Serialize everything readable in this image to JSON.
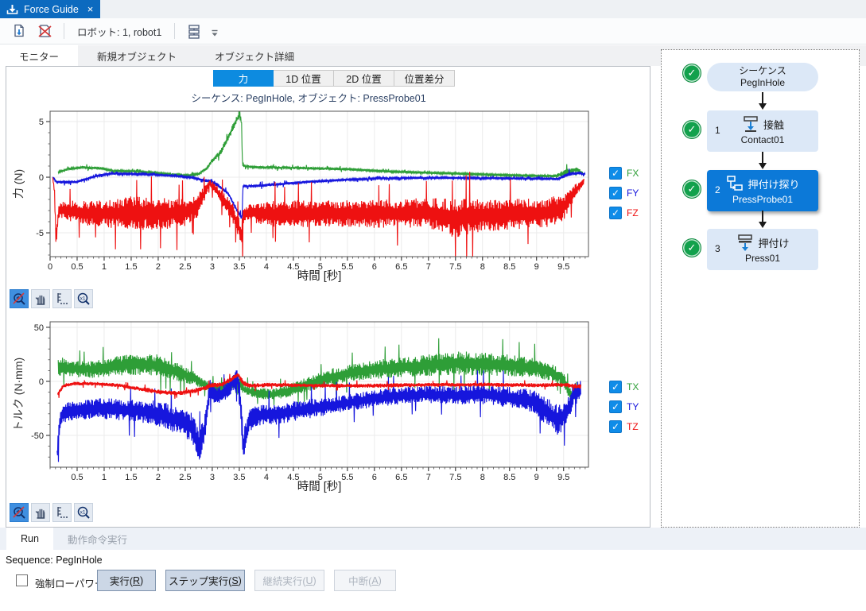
{
  "window": {
    "tab_title": "Force Guide",
    "close_glyph": "×"
  },
  "glyphs": {
    "check": "✓"
  },
  "colors": {
    "accent_blue": "#0d8be0",
    "title_tab_blue": "#0c6abf",
    "selected_node_blue": "#0c79d8",
    "node_bg": "#dce8f7",
    "success_green": "#12a14c",
    "fx": "#2e9e37",
    "fy": "#1616dd",
    "fz": "#ee1111"
  },
  "toolbar": {
    "robot_label": "ロボット: 1, robot1"
  },
  "main_tabs": {
    "items": [
      "モニター",
      "新規オブジェクト",
      "オブジェクト詳細"
    ]
  },
  "chart_tabs": {
    "items": [
      "力",
      "1D 位置",
      "2D 位置",
      "位置差分"
    ]
  },
  "subtitle": "シーケンス: PegInHole, オブジェクト: PressProbe01",
  "chart_data": [
    {
      "type": "line",
      "title": "シーケンス: PegInHole, オブジェクト: PressProbe01",
      "xlabel": "時間 [秒]",
      "ylabel": "力 (N)",
      "xlim": [
        0,
        9.96
      ],
      "ylim": [
        -7.14,
        5.93
      ],
      "xticks": [
        0,
        0.5,
        1,
        1.5,
        2,
        2.5,
        3,
        3.5,
        4,
        4.5,
        5,
        5.5,
        6,
        6.5,
        7,
        7.5,
        8,
        8.5,
        9,
        9.5
      ],
      "yticks": [
        5,
        0,
        -5
      ],
      "x_minor_step": 0.1,
      "y_minor_step": 1,
      "grid": true,
      "legend_position": "right",
      "series": [
        {
          "name": "FX",
          "color": "#2e9e37",
          "checked": true,
          "keyframes": [
            [
              0.15,
              0.45,
              0.1
            ],
            [
              0.35,
              0.75,
              0.12
            ],
            [
              0.6,
              0.88,
              0.13
            ],
            [
              0.95,
              0.8,
              0.12
            ],
            [
              1.15,
              0.58,
              0.1
            ],
            [
              1.6,
              0.52,
              0.1
            ],
            [
              2.1,
              0.32,
              0.1
            ],
            [
              2.55,
              0.15,
              0.1
            ],
            [
              2.75,
              0.3,
              0.12
            ],
            [
              2.9,
              0.8,
              0.15
            ],
            [
              3.0,
              1.5,
              0.2
            ],
            [
              3.15,
              2.2,
              0.25
            ],
            [
              3.3,
              3.6,
              0.3
            ],
            [
              3.42,
              4.9,
              0.35
            ],
            [
              3.5,
              5.55,
              0.25
            ],
            [
              3.54,
              5.1,
              0.3
            ],
            [
              3.56,
              1.05,
              0.12
            ],
            [
              3.75,
              0.9,
              0.12
            ],
            [
              4.5,
              0.85,
              0.12
            ],
            [
              5.5,
              0.72,
              0.12
            ],
            [
              6.3,
              0.5,
              0.1
            ],
            [
              7.2,
              0.38,
              0.1
            ],
            [
              8.2,
              0.22,
              0.09
            ],
            [
              9.0,
              0.12,
              0.08
            ],
            [
              9.35,
              0.1,
              0.15
            ],
            [
              9.55,
              0.45,
              0.3
            ],
            [
              9.75,
              0.7,
              0.25
            ],
            [
              9.88,
              0.25,
              0.1
            ]
          ]
        },
        {
          "name": "FY",
          "color": "#1616dd",
          "checked": true,
          "keyframes": [
            [
              0.05,
              0.0,
              0.06
            ],
            [
              0.12,
              -0.45,
              0.13
            ],
            [
              0.5,
              -0.42,
              0.13
            ],
            [
              0.8,
              0.05,
              0.1
            ],
            [
              1.1,
              0.33,
              0.1
            ],
            [
              1.7,
              0.28,
              0.09
            ],
            [
              2.3,
              0.12,
              0.08
            ],
            [
              2.65,
              -0.05,
              0.09
            ],
            [
              2.85,
              -0.28,
              0.12
            ],
            [
              2.98,
              -0.35,
              0.25
            ],
            [
              3.1,
              -0.7,
              0.15
            ],
            [
              3.3,
              -1.5,
              0.18
            ],
            [
              3.45,
              -2.9,
              0.2
            ],
            [
              3.52,
              -3.45,
              0.25
            ],
            [
              3.555,
              -3.65,
              0.15
            ],
            [
              3.565,
              -0.8,
              0.12
            ],
            [
              3.8,
              -0.78,
              0.15
            ],
            [
              4.3,
              -0.6,
              0.13
            ],
            [
              4.9,
              -0.38,
              0.12
            ],
            [
              5.5,
              -0.22,
              0.1
            ],
            [
              6.2,
              -0.1,
              0.1
            ],
            [
              7.0,
              -0.05,
              0.1
            ],
            [
              8.0,
              -0.08,
              0.1
            ],
            [
              8.9,
              -0.13,
              0.1
            ],
            [
              9.4,
              -0.15,
              0.12
            ],
            [
              9.6,
              0.3,
              0.2
            ],
            [
              9.78,
              0.38,
              0.15
            ],
            [
              9.9,
              0.28,
              0.1
            ]
          ]
        },
        {
          "name": "FZ",
          "color": "#ee1111",
          "checked": true,
          "keyframes": [
            [
              0.05,
              -0.1,
              0.1
            ],
            [
              0.08,
              -1.2,
              0.4
            ],
            [
              0.11,
              -5.6,
              0.9
            ],
            [
              0.16,
              -3.0,
              0.6
            ],
            [
              0.3,
              -3.0,
              0.9
            ],
            [
              0.6,
              -3.2,
              1.1
            ],
            [
              1.0,
              -3.3,
              1.2
            ],
            [
              1.5,
              -3.2,
              1.5
            ],
            [
              2.0,
              -3.3,
              1.45
            ],
            [
              2.45,
              -3.2,
              1.3
            ],
            [
              2.7,
              -2.7,
              1.1
            ],
            [
              2.85,
              -1.5,
              0.7
            ],
            [
              2.95,
              -0.55,
              0.35
            ],
            [
              3.05,
              -1.0,
              0.5
            ],
            [
              3.2,
              -2.0,
              0.7
            ],
            [
              3.35,
              -2.9,
              0.85
            ],
            [
              3.5,
              -4.6,
              0.9
            ],
            [
              3.53,
              -5.4,
              0.7
            ],
            [
              3.55,
              -5.0,
              2.3
            ],
            [
              3.58,
              -3.3,
              0.6
            ],
            [
              3.75,
              -3.2,
              0.9
            ],
            [
              4.1,
              -3.3,
              1.15
            ],
            [
              5.0,
              -3.25,
              1.25
            ],
            [
              6.0,
              -3.3,
              1.25
            ],
            [
              7.0,
              -3.2,
              1.35
            ],
            [
              7.5,
              -3.7,
              1.8
            ],
            [
              8.0,
              -3.4,
              1.45
            ],
            [
              8.7,
              -3.3,
              1.45
            ],
            [
              9.2,
              -3.2,
              1.35
            ],
            [
              9.5,
              -2.7,
              1.2
            ],
            [
              9.7,
              -1.3,
              0.7
            ],
            [
              9.88,
              -0.35,
              0.25
            ]
          ]
        }
      ]
    },
    {
      "type": "line",
      "title": "",
      "xlabel": "時間 [秒]",
      "ylabel": "トルク (N·mm)",
      "xlim": [
        0,
        9.96
      ],
      "ylim": [
        -79.4,
        55.1
      ],
      "xticks": [
        0.5,
        1,
        1.5,
        2,
        2.5,
        3,
        3.5,
        4,
        4.5,
        5,
        5.5,
        6,
        6.5,
        7,
        7.5,
        8,
        8.5,
        9,
        9.5
      ],
      "yticks": [
        50,
        0,
        -50
      ],
      "x_minor_step": 0.1,
      "y_minor_step": 10,
      "grid": true,
      "legend_position": "right",
      "series": [
        {
          "name": "TX",
          "color": "#2e9e37",
          "checked": true,
          "keyframes": [
            [
              0.15,
              14,
              9
            ],
            [
              0.4,
              12,
              8
            ],
            [
              0.8,
              11,
              8
            ],
            [
              1.2,
              14,
              9
            ],
            [
              1.6,
              16,
              10
            ],
            [
              2.0,
              15,
              10
            ],
            [
              2.4,
              8,
              8
            ],
            [
              2.7,
              2,
              6
            ],
            [
              2.9,
              -4,
              5
            ],
            [
              3.1,
              -7,
              5
            ],
            [
              3.3,
              -5,
              6
            ],
            [
              3.45,
              2,
              6
            ],
            [
              3.6,
              -8,
              5
            ],
            [
              3.85,
              -11,
              5
            ],
            [
              4.1,
              -12,
              5
            ],
            [
              4.4,
              -9,
              6
            ],
            [
              4.8,
              -2,
              7
            ],
            [
              5.2,
              4,
              8
            ],
            [
              5.6,
              8,
              8
            ],
            [
              6.0,
              11,
              9
            ],
            [
              6.5,
              13,
              9
            ],
            [
              7.0,
              15,
              10
            ],
            [
              7.5,
              17,
              11
            ],
            [
              8.0,
              16,
              11
            ],
            [
              8.5,
              15,
              10
            ],
            [
              9.0,
              12,
              9
            ],
            [
              9.3,
              8,
              8
            ],
            [
              9.5,
              2,
              6
            ],
            [
              9.62,
              -12,
              6
            ],
            [
              9.75,
              -13,
              5
            ]
          ]
        },
        {
          "name": "TY",
          "color": "#1616dd",
          "checked": true,
          "keyframes": [
            [
              0.13,
              -68,
              10
            ],
            [
              0.19,
              -32,
              9
            ],
            [
              0.35,
              -28,
              9
            ],
            [
              0.7,
              -26,
              9
            ],
            [
              1.05,
              -25,
              10
            ],
            [
              1.45,
              -27,
              10
            ],
            [
              1.85,
              -28,
              11
            ],
            [
              2.15,
              -32,
              12
            ],
            [
              2.45,
              -38,
              13
            ],
            [
              2.62,
              -42,
              14
            ],
            [
              2.76,
              -60,
              16
            ],
            [
              2.86,
              -44,
              13
            ],
            [
              2.96,
              -8,
              10
            ],
            [
              3.06,
              -14,
              8
            ],
            [
              3.2,
              -12,
              8
            ],
            [
              3.38,
              -1,
              9
            ],
            [
              3.47,
              1,
              10
            ],
            [
              3.53,
              -22,
              14
            ],
            [
              3.57,
              -62,
              16
            ],
            [
              3.68,
              -36,
              10
            ],
            [
              3.85,
              -32,
              10
            ],
            [
              4.2,
              -30,
              10
            ],
            [
              4.6,
              -27,
              9
            ],
            [
              5.0,
              -24,
              9
            ],
            [
              5.5,
              -20,
              8
            ],
            [
              6.0,
              -16,
              8
            ],
            [
              6.5,
              -13,
              8
            ],
            [
              7.0,
              -12,
              8
            ],
            [
              7.5,
              -13,
              9
            ],
            [
              8.0,
              -12,
              9
            ],
            [
              8.5,
              -15,
              10
            ],
            [
              8.9,
              -18,
              11
            ],
            [
              9.2,
              -28,
              13
            ],
            [
              9.4,
              -36,
              14
            ],
            [
              9.55,
              -30,
              12
            ],
            [
              9.67,
              -13,
              11
            ],
            [
              9.82,
              -8,
              9
            ]
          ]
        },
        {
          "name": "TZ",
          "color": "#ee1111",
          "checked": true,
          "keyframes": [
            [
              0.14,
              -12,
              2.5
            ],
            [
              0.25,
              -4,
              2
            ],
            [
              0.45,
              -2,
              1.6
            ],
            [
              0.85,
              -2.2,
              1.6
            ],
            [
              1.25,
              -3.5,
              1.7
            ],
            [
              1.65,
              -7,
              2
            ],
            [
              2.05,
              -10,
              2.2
            ],
            [
              2.35,
              -11,
              2.2
            ],
            [
              2.65,
              -9,
              2.2
            ],
            [
              2.9,
              -5.5,
              2.5
            ],
            [
              3.02,
              -3.5,
              2.5
            ],
            [
              3.2,
              -2.5,
              2.2
            ],
            [
              3.38,
              3,
              2.2
            ],
            [
              3.47,
              6.5,
              2.2
            ],
            [
              3.56,
              -0.5,
              3
            ],
            [
              3.68,
              -4,
              2.2
            ],
            [
              4.1,
              -3.2,
              1.9
            ],
            [
              5.0,
              -4,
              1.9
            ],
            [
              6.0,
              -4,
              2
            ],
            [
              7.0,
              -3.2,
              1.9
            ],
            [
              8.0,
              -3,
              1.9
            ],
            [
              9.0,
              -3.6,
              1.9
            ],
            [
              9.5,
              -3.2,
              2
            ],
            [
              9.82,
              -5,
              2.2
            ]
          ]
        }
      ]
    }
  ],
  "sequence_panel": {
    "root": {
      "line1": "シーケンス",
      "line2": "PegInHole",
      "status": "success"
    },
    "steps": [
      {
        "num": "1",
        "type_label": "接触",
        "name": "Contact01",
        "status": "success",
        "selected": false
      },
      {
        "num": "2",
        "type_label": "押付け探り",
        "name": "PressProbe01",
        "status": "success",
        "selected": true
      },
      {
        "num": "3",
        "type_label": "押付け",
        "name": "Press01",
        "status": "success",
        "selected": false
      }
    ]
  },
  "run_panel": {
    "tabs": [
      {
        "label": "Run",
        "active": true
      },
      {
        "label": "動作命令実行",
        "active": false
      }
    ],
    "sequence_line": "Sequence: PegInHole",
    "low_power_label": "強制ローパワー",
    "low_power_checked": false,
    "buttons": [
      {
        "pre": "実行(",
        "key": "R",
        "post": ")",
        "enabled": true
      },
      {
        "pre": "ステップ実行(",
        "key": "S",
        "post": ")",
        "enabled": true
      },
      {
        "pre": "継続実行(",
        "key": "U",
        "post": ")",
        "enabled": false
      },
      {
        "pre": "中断(",
        "key": "A",
        "post": ")",
        "enabled": false
      }
    ]
  }
}
